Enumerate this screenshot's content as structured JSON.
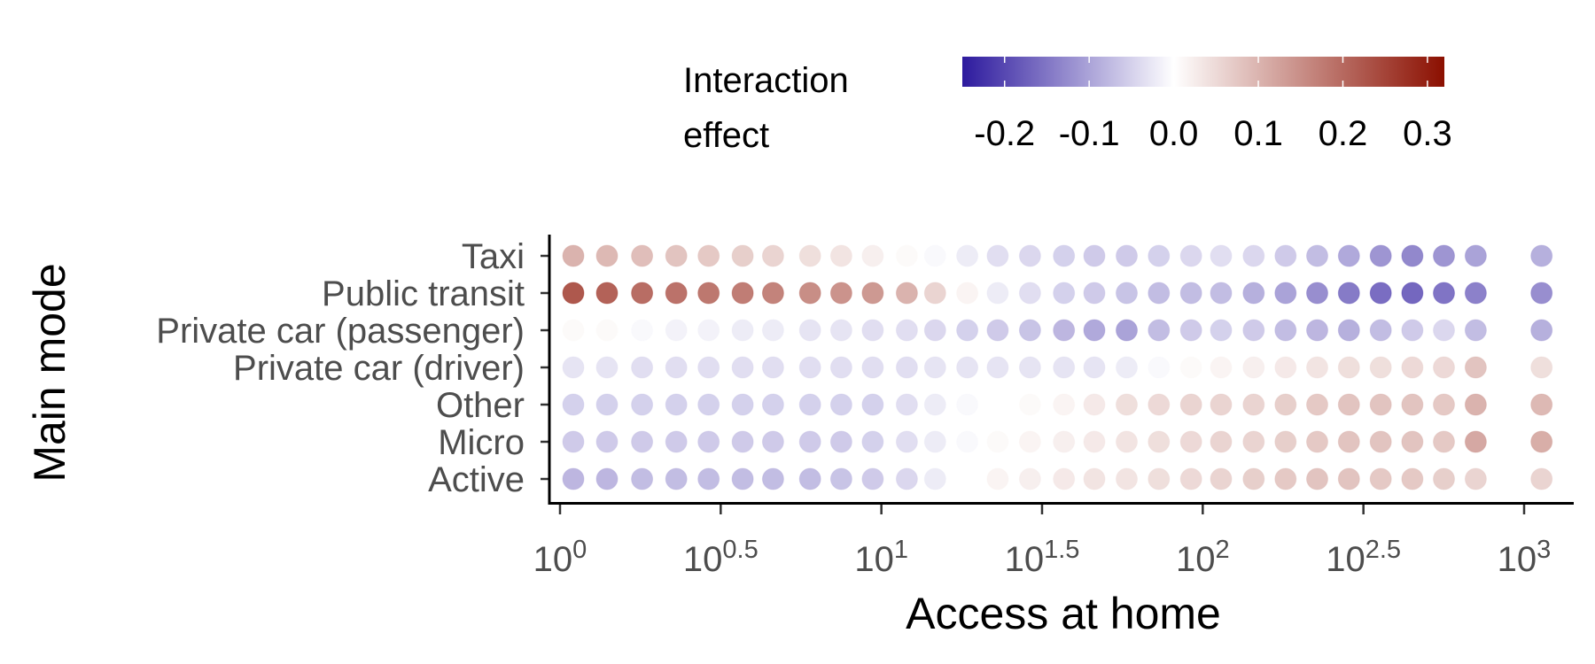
{
  "chart_data": {
    "type": "scatter",
    "title": "",
    "xlabel": "Access at home",
    "ylabel": "Main mode",
    "x_scale": "log10",
    "xlim": [
      1,
      1000
    ],
    "x_ticks": [
      {
        "base": "10",
        "exp": "0"
      },
      {
        "base": "10",
        "exp": "0.5"
      },
      {
        "base": "10",
        "exp": "1"
      },
      {
        "base": "10",
        "exp": "1.5"
      },
      {
        "base": "10",
        "exp": "2"
      },
      {
        "base": "10",
        "exp": "2.5"
      },
      {
        "base": "10",
        "exp": "3"
      }
    ],
    "categories": [
      "Taxi",
      "Public transit",
      "Private car (passenger)",
      "Private car (driver)",
      "Other",
      "Micro",
      "Active"
    ],
    "legend": {
      "title_lines": [
        "Interaction",
        "effect"
      ],
      "placement": "top",
      "min": -0.25,
      "max": 0.32,
      "ticks": [
        "-0.2",
        "-0.1",
        "0.0",
        "0.1",
        "0.2",
        "0.3"
      ],
      "colors": {
        "low": "#2d1a9e",
        "mid": "#ffffff",
        "high": "#8b0f00"
      }
    },
    "x": [
      1.1,
      1.4,
      1.8,
      2.3,
      2.9,
      3.7,
      4.6,
      6.0,
      7.5,
      9.4,
      12.0,
      14.7,
      18.5,
      23,
      29,
      37,
      46,
      58,
      73,
      92,
      114,
      144,
      181,
      227,
      285,
      358,
      449,
      563,
      707,
      1133
    ],
    "series": [
      {
        "values": [
          0.14,
          0.13,
          0.12,
          0.11,
          0.1,
          0.09,
          0.08,
          0.06,
          0.05,
          0.03,
          0.01,
          -0.01,
          -0.03,
          -0.05,
          -0.06,
          -0.07,
          -0.08,
          -0.08,
          -0.07,
          -0.06,
          -0.05,
          -0.06,
          -0.08,
          -0.1,
          -0.13,
          -0.16,
          -0.18,
          -0.16,
          -0.14,
          -0.12
        ]
      },
      {
        "values": [
          0.31,
          0.29,
          0.27,
          0.26,
          0.25,
          0.24,
          0.23,
          0.21,
          0.2,
          0.19,
          0.14,
          0.08,
          0.02,
          -0.03,
          -0.05,
          -0.07,
          -0.08,
          -0.09,
          -0.1,
          -0.1,
          -0.1,
          -0.12,
          -0.14,
          -0.17,
          -0.2,
          -0.22,
          -0.23,
          -0.21,
          -0.19,
          -0.17
        ]
      },
      {
        "values": [
          0.01,
          0.01,
          -0.01,
          -0.02,
          -0.02,
          -0.03,
          -0.03,
          -0.04,
          -0.04,
          -0.05,
          -0.05,
          -0.06,
          -0.07,
          -0.08,
          -0.09,
          -0.11,
          -0.13,
          -0.14,
          -0.1,
          -0.08,
          -0.07,
          -0.08,
          -0.1,
          -0.11,
          -0.12,
          -0.1,
          -0.08,
          -0.06,
          -0.1,
          -0.12
        ]
      },
      {
        "values": [
          -0.04,
          -0.04,
          -0.05,
          -0.05,
          -0.05,
          -0.05,
          -0.05,
          -0.05,
          -0.05,
          -0.05,
          -0.05,
          -0.04,
          -0.04,
          -0.04,
          -0.04,
          -0.04,
          -0.04,
          -0.03,
          -0.01,
          0.01,
          0.02,
          0.03,
          0.04,
          0.05,
          0.06,
          0.06,
          0.07,
          0.07,
          0.11,
          0.06
        ]
      },
      {
        "values": [
          -0.07,
          -0.07,
          -0.07,
          -0.07,
          -0.07,
          -0.07,
          -0.07,
          -0.07,
          -0.07,
          -0.07,
          -0.05,
          -0.03,
          -0.01,
          0.0,
          0.01,
          0.02,
          0.04,
          0.06,
          0.07,
          0.08,
          0.08,
          0.08,
          0.09,
          0.1,
          0.11,
          0.11,
          0.11,
          0.1,
          0.14,
          0.13
        ]
      },
      {
        "values": [
          -0.08,
          -0.08,
          -0.08,
          -0.08,
          -0.08,
          -0.08,
          -0.08,
          -0.08,
          -0.08,
          -0.07,
          -0.05,
          -0.03,
          -0.01,
          0.01,
          0.02,
          0.03,
          0.04,
          0.05,
          0.06,
          0.07,
          0.08,
          0.08,
          0.09,
          0.1,
          0.11,
          0.11,
          0.11,
          0.1,
          0.16,
          0.15
        ]
      },
      {
        "values": [
          -0.11,
          -0.11,
          -0.1,
          -0.1,
          -0.1,
          -0.1,
          -0.1,
          -0.1,
          -0.09,
          -0.08,
          -0.06,
          -0.03,
          0.0,
          0.02,
          0.03,
          0.04,
          0.05,
          0.05,
          0.06,
          0.07,
          0.08,
          0.09,
          0.1,
          0.11,
          0.11,
          0.1,
          0.1,
          0.09,
          0.08,
          0.08
        ]
      }
    ]
  }
}
